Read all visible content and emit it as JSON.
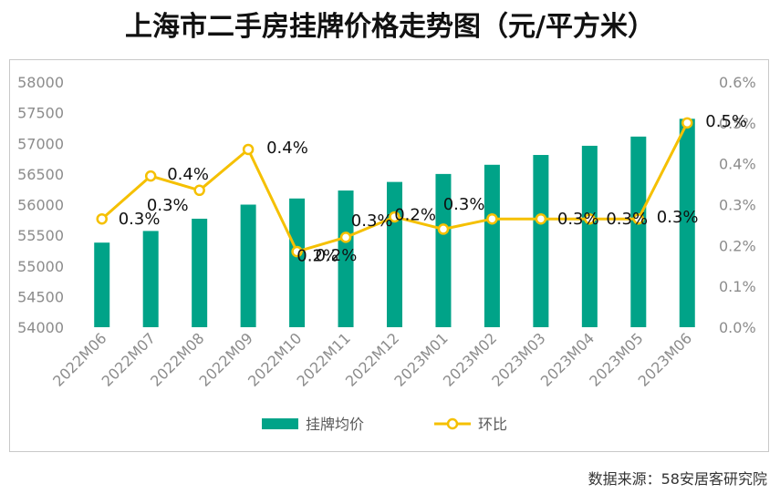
{
  "title": "上海市二手房挂牌价格走势图（元/平方米）",
  "source": "数据来源：58安居客研究院",
  "chart_data": {
    "type": "bar+line",
    "categories": [
      "2022M06",
      "2022M07",
      "2022M08",
      "2022M09",
      "2022M10",
      "2022M11",
      "2022M12",
      "2023M01",
      "2023M02",
      "2023M03",
      "2023M04",
      "2023M05",
      "2023M06"
    ],
    "series": [
      {
        "name": "挂牌均价",
        "type": "bar",
        "axis": "left",
        "color": "#00a388",
        "values": [
          55380,
          55570,
          55770,
          56000,
          56100,
          56230,
          56370,
          56500,
          56650,
          56810,
          56960,
          57110,
          57400
        ]
      },
      {
        "name": "环比",
        "type": "line",
        "axis": "right",
        "color": "#f5c000",
        "values": [
          0.265,
          0.37,
          0.335,
          0.435,
          0.185,
          0.22,
          0.27,
          0.24,
          0.265,
          0.265,
          0.265,
          0.265,
          0.5
        ],
        "labels": [
          "0.3%",
          "0.4%",
          "0.3%",
          "0.4%",
          "0.2%",
          "0.2%",
          "0.3%",
          "0.2%",
          "0.3%",
          "0.3%",
          "0.3%",
          "0.3%",
          "0.5%"
        ]
      }
    ],
    "y_left": {
      "min": 54000,
      "max": 58000,
      "step": 500,
      "ticks": [
        "54000",
        "54500",
        "55000",
        "55500",
        "56000",
        "56500",
        "57000",
        "57500",
        "58000"
      ]
    },
    "y_right": {
      "min": 0,
      "max": 0.6,
      "step": 0.1,
      "ticks": [
        "0.0%",
        "0.1%",
        "0.2%",
        "0.3%",
        "0.4%",
        "0.5%",
        "0.6%"
      ]
    },
    "legend": [
      {
        "label": "挂牌均价",
        "kind": "bar"
      },
      {
        "label": "环比",
        "kind": "line"
      }
    ],
    "legend_position": "bottom",
    "grid": false
  }
}
